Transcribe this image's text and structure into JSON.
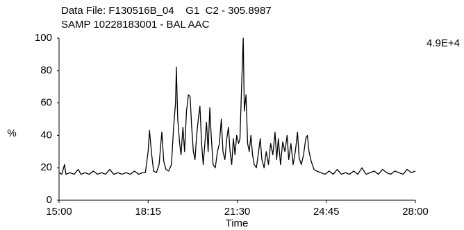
{
  "chart_data": {
    "type": "line",
    "title": "Data File: F130516B_04    G1  C2 - 305.8987",
    "subtitle": "SAMP 10228183001 - BAL AAC",
    "annotation": "4.9E+4",
    "ylabel": "%",
    "xlabel": "Time",
    "color": "#000000",
    "xlim": [
      15,
      28
    ],
    "xticks": [
      {
        "value": 15,
        "label": "15:00"
      },
      {
        "value": 18.25,
        "label": "18:15"
      },
      {
        "value": 21.5,
        "label": "21:30"
      },
      {
        "value": 24.75,
        "label": "24:45"
      },
      {
        "value": 28,
        "label": "28:00"
      }
    ],
    "ylim": [
      0,
      100
    ],
    "yticks": [
      0,
      20,
      40,
      60,
      80,
      100
    ],
    "x": [
      15.0,
      15.1,
      15.2,
      15.25,
      15.4,
      15.55,
      15.7,
      15.8,
      15.95,
      16.1,
      16.25,
      16.4,
      16.55,
      16.7,
      16.85,
      17.0,
      17.15,
      17.3,
      17.45,
      17.6,
      17.75,
      17.9,
      18.05,
      18.15,
      18.25,
      18.3,
      18.38,
      18.45,
      18.55,
      18.65,
      18.75,
      18.82,
      18.9,
      19.0,
      19.1,
      19.18,
      19.25,
      19.28,
      19.33,
      19.4,
      19.45,
      19.52,
      19.58,
      19.65,
      19.72,
      19.78,
      19.84,
      19.9,
      19.96,
      20.02,
      20.08,
      20.14,
      20.2,
      20.26,
      20.32,
      20.38,
      20.44,
      20.5,
      20.55,
      20.62,
      20.7,
      20.78,
      20.85,
      20.92,
      20.98,
      21.05,
      21.12,
      21.18,
      21.24,
      21.3,
      21.36,
      21.42,
      21.48,
      21.55,
      21.6,
      21.66,
      21.72,
      21.76,
      21.82,
      21.88,
      21.94,
      22.0,
      22.06,
      22.12,
      22.2,
      22.28,
      22.34,
      22.4,
      22.48,
      22.56,
      22.64,
      22.72,
      22.8,
      22.88,
      22.94,
      23.0,
      23.08,
      23.16,
      23.24,
      23.32,
      23.38,
      23.46,
      23.54,
      23.62,
      23.7,
      23.76,
      23.84,
      23.92,
      24.0,
      24.06,
      24.12,
      24.2,
      24.3,
      24.4,
      24.55,
      24.7,
      24.85,
      25.0,
      25.15,
      25.3,
      25.45,
      25.6,
      25.75,
      25.9,
      26.05,
      26.2,
      26.35,
      26.5,
      26.65,
      26.8,
      26.95,
      27.1,
      27.25,
      27.4,
      27.55,
      27.7,
      27.85,
      28.0
    ],
    "values": [
      17,
      16,
      22,
      16,
      17,
      16,
      19,
      16,
      17,
      16,
      18,
      16,
      17,
      16,
      19,
      16,
      17,
      16,
      17,
      16,
      18,
      16,
      17,
      17,
      30,
      43,
      28,
      18,
      17,
      22,
      42,
      24,
      19,
      18,
      22,
      45,
      60,
      82,
      50,
      35,
      28,
      45,
      30,
      55,
      65,
      64,
      45,
      30,
      25,
      40,
      50,
      58,
      35,
      22,
      35,
      48,
      30,
      57,
      40,
      22,
      20,
      30,
      35,
      50,
      30,
      25,
      38,
      45,
      30,
      22,
      38,
      28,
      40,
      35,
      38,
      70,
      100,
      55,
      65,
      35,
      30,
      40,
      28,
      22,
      20,
      30,
      38,
      25,
      20,
      30,
      22,
      35,
      28,
      42,
      25,
      38,
      22,
      36,
      30,
      40,
      25,
      35,
      22,
      30,
      42,
      26,
      22,
      28,
      38,
      40,
      30,
      24,
      19,
      18,
      17,
      16,
      18,
      16,
      19,
      16,
      17,
      16,
      18,
      16,
      20,
      16,
      17,
      18,
      16,
      19,
      17,
      16,
      18,
      17,
      16,
      19,
      17,
      18
    ]
  }
}
